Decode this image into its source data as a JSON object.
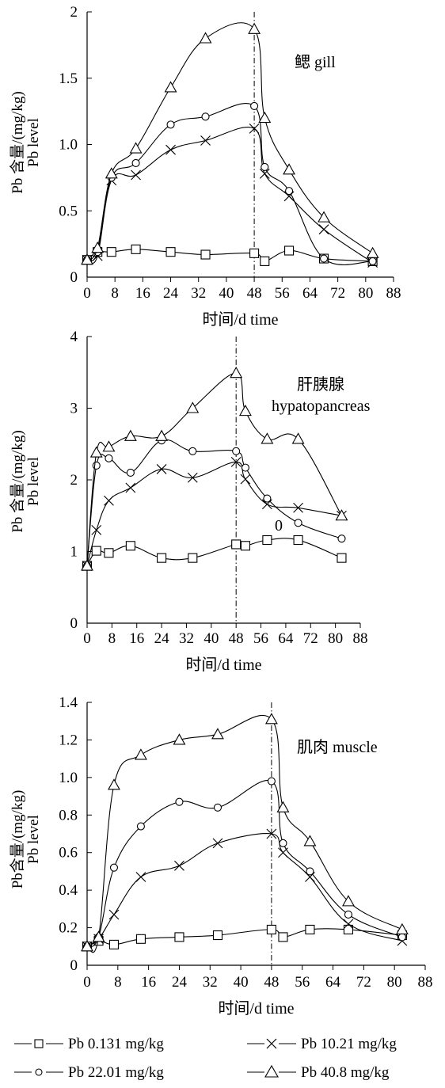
{
  "chart_data": [
    {
      "type": "line",
      "annotation": "鳃 gill",
      "ylabel_1": "Pb 含量/(mg/kg)",
      "ylabel_2": "Pb level",
      "xlabel": "时间/d  time",
      "xlim": [
        0,
        88
      ],
      "ylim": [
        0,
        2
      ],
      "xticks": [
        "0",
        "8",
        "16",
        "24",
        "32",
        "40",
        "48",
        "56",
        "64",
        "72",
        "80",
        "88"
      ],
      "yticks": [
        {
          "v": 0,
          "label": "0"
        },
        {
          "v": 0.5,
          "label": "0.5"
        },
        {
          "v": 1,
          "label": "1.0"
        },
        {
          "v": 1.5,
          "label": "1.5"
        },
        {
          "v": 2,
          "label": "2"
        }
      ],
      "vline_x": 48,
      "series": [
        {
          "name": "Pb 0.131 mg/kg",
          "marker": "square",
          "points": [
            [
              0,
              0.13
            ],
            [
              3,
              0.19
            ],
            [
              7,
              0.19
            ],
            [
              14,
              0.21
            ],
            [
              24,
              0.19
            ],
            [
              34,
              0.17
            ],
            [
              48,
              0.18
            ],
            [
              51,
              0.12
            ],
            [
              58,
              0.2
            ],
            [
              68,
              0.14
            ],
            [
              82,
              0.12
            ]
          ]
        },
        {
          "name": "Pb 10.21 mg/kg",
          "marker": "cross",
          "points": [
            [
              0,
              0.13
            ],
            [
              3,
              0.16
            ],
            [
              7,
              0.73
            ],
            [
              14,
              0.77
            ],
            [
              24,
              0.96
            ],
            [
              34,
              1.03
            ],
            [
              48,
              1.12
            ],
            [
              51,
              0.78
            ],
            [
              58,
              0.61
            ],
            [
              68,
              0.36
            ],
            [
              82,
              0.11
            ]
          ]
        },
        {
          "name": "Pb 22.01 mg/kg",
          "marker": "circle",
          "points": [
            [
              0,
              0.13
            ],
            [
              3,
              0.19
            ],
            [
              7,
              0.75
            ],
            [
              14,
              0.86
            ],
            [
              24,
              1.15
            ],
            [
              34,
              1.21
            ],
            [
              48,
              1.29
            ],
            [
              51,
              0.83
            ],
            [
              58,
              0.65
            ],
            [
              68,
              0.14
            ],
            [
              82,
              0.12
            ]
          ]
        },
        {
          "name": "Pb 40.8 mg/kg",
          "marker": "triangle",
          "points": [
            [
              0,
              0.13
            ],
            [
              3,
              0.22
            ],
            [
              7,
              0.78
            ],
            [
              14,
              0.97
            ],
            [
              24,
              1.43
            ],
            [
              34,
              1.8
            ],
            [
              48,
              1.87
            ],
            [
              51,
              1.2
            ],
            [
              58,
              0.81
            ],
            [
              68,
              0.45
            ],
            [
              82,
              0.18
            ]
          ]
        }
      ]
    },
    {
      "type": "line",
      "annotation": "肝胰腺",
      "annotation_2": "hypatopancreas",
      "ylabel_1": "Pb 含量/(mg/kg)",
      "ylabel_2": "Pb level",
      "xlabel": "时间/d  time",
      "xlim": [
        0,
        88
      ],
      "ylim": [
        0,
        4
      ],
      "xticks": [
        "0",
        "8",
        "16",
        "24",
        "32",
        "40",
        "48",
        "56",
        "64",
        "72",
        "80",
        "88"
      ],
      "yticks": [
        {
          "v": 0,
          "label": "0"
        },
        {
          "v": 1,
          "label": "1"
        },
        {
          "v": 2,
          "label": "2"
        },
        {
          "v": 3,
          "label": "3"
        },
        {
          "v": 4,
          "label": "4"
        }
      ],
      "vline_x": 48,
      "stray_label": "0",
      "series": [
        {
          "name": "Pb 0.131 mg/kg",
          "marker": "square",
          "points": [
            [
              0,
              0.8
            ],
            [
              3,
              1.01
            ],
            [
              7,
              0.98
            ],
            [
              14,
              1.08
            ],
            [
              24,
              0.91
            ],
            [
              34,
              0.91
            ],
            [
              48,
              1.1
            ],
            [
              51,
              1.08
            ],
            [
              58,
              1.16
            ],
            [
              68,
              1.16
            ],
            [
              82,
              0.91
            ]
          ]
        },
        {
          "name": "Pb 10.21 mg/kg",
          "marker": "cross",
          "points": [
            [
              0,
              0.8
            ],
            [
              3,
              1.3
            ],
            [
              7,
              1.71
            ],
            [
              14,
              1.89
            ],
            [
              24,
              2.15
            ],
            [
              34,
              2.03
            ],
            [
              48,
              2.25
            ],
            [
              51,
              2.01
            ],
            [
              58,
              1.66
            ],
            [
              68,
              1.61
            ],
            [
              82,
              1.5
            ]
          ]
        },
        {
          "name": "Pb 22.01 mg/kg",
          "marker": "circle",
          "points": [
            [
              0,
              0.8
            ],
            [
              3,
              2.2
            ],
            [
              7,
              2.3
            ],
            [
              14,
              2.1
            ],
            [
              24,
              2.55
            ],
            [
              34,
              2.4
            ],
            [
              48,
              2.4
            ],
            [
              51,
              2.17
            ],
            [
              58,
              1.74
            ],
            [
              68,
              1.4
            ],
            [
              82,
              1.18
            ]
          ]
        },
        {
          "name": "Pb 40.8 mg/kg",
          "marker": "triangle",
          "points": [
            [
              0,
              0.8
            ],
            [
              3,
              2.38
            ],
            [
              7,
              2.46
            ],
            [
              14,
              2.61
            ],
            [
              24,
              2.61
            ],
            [
              34,
              3.0
            ],
            [
              48,
              3.49
            ],
            [
              51,
              2.96
            ],
            [
              58,
              2.57
            ],
            [
              68,
              2.57
            ],
            [
              82,
              1.5
            ]
          ]
        }
      ]
    },
    {
      "type": "line",
      "annotation": "肌肉 muscle",
      "ylabel_1": "Pb含量/(mg/kg)",
      "ylabel_2": "Pb level",
      "xlabel": "时间/d  time",
      "xlim": [
        0,
        88
      ],
      "ylim": [
        0,
        1.4
      ],
      "xticks": [
        "0",
        "8",
        "16",
        "24",
        "32",
        "40",
        "48",
        "56",
        "64",
        "72",
        "80",
        "88"
      ],
      "yticks": [
        {
          "v": 0,
          "label": "0"
        },
        {
          "v": 0.2,
          "label": "0.2"
        },
        {
          "v": 0.4,
          "label": "0.4"
        },
        {
          "v": 0.6,
          "label": "0.6"
        },
        {
          "v": 0.8,
          "label": "0.8"
        },
        {
          "v": 1.0,
          "label": "1.0"
        },
        {
          "v": 1.2,
          "label": "1.2"
        },
        {
          "v": 1.4,
          "label": "1.4"
        }
      ],
      "vline_x": 48,
      "series": [
        {
          "name": "Pb 0.131 mg/kg",
          "marker": "square",
          "points": [
            [
              0,
              0.1
            ],
            [
              3,
              0.13
            ],
            [
              7,
              0.11
            ],
            [
              14,
              0.14
            ],
            [
              24,
              0.15
            ],
            [
              34,
              0.16
            ],
            [
              48,
              0.19
            ],
            [
              51,
              0.15
            ],
            [
              58,
              0.19
            ],
            [
              68,
              0.19
            ],
            [
              82,
              0.16
            ]
          ]
        },
        {
          "name": "Pb 10.21 mg/kg",
          "marker": "cross",
          "points": [
            [
              0,
              0.1
            ],
            [
              3,
              0.14
            ],
            [
              7,
              0.27
            ],
            [
              14,
              0.47
            ],
            [
              24,
              0.53
            ],
            [
              34,
              0.65
            ],
            [
              48,
              0.7
            ],
            [
              51,
              0.6
            ],
            [
              58,
              0.47
            ],
            [
              68,
              0.22
            ],
            [
              82,
              0.13
            ]
          ]
        },
        {
          "name": "Pb 22.01 mg/kg",
          "marker": "circle",
          "points": [
            [
              0,
              0.1
            ],
            [
              3,
              0.15
            ],
            [
              7,
              0.52
            ],
            [
              14,
              0.74
            ],
            [
              24,
              0.87
            ],
            [
              34,
              0.84
            ],
            [
              48,
              0.98
            ],
            [
              51,
              0.65
            ],
            [
              58,
              0.5
            ],
            [
              68,
              0.27
            ],
            [
              82,
              0.15
            ]
          ]
        },
        {
          "name": "Pb 40.8 mg/kg",
          "marker": "triangle",
          "points": [
            [
              0,
              0.1
            ],
            [
              3,
              0.15
            ],
            [
              7,
              0.96
            ],
            [
              14,
              1.12
            ],
            [
              24,
              1.2
            ],
            [
              34,
              1.23
            ],
            [
              48,
              1.31
            ],
            [
              51,
              0.84
            ],
            [
              58,
              0.66
            ],
            [
              68,
              0.34
            ],
            [
              82,
              0.19
            ]
          ]
        }
      ]
    }
  ],
  "legend": [
    {
      "label": "Pb 0.131 mg/kg",
      "marker": "square"
    },
    {
      "label": "Pb 10.21 mg/kg",
      "marker": "cross"
    },
    {
      "label": "Pb 22.01 mg/kg",
      "marker": "circle"
    },
    {
      "label": "Pb 40.8 mg/kg",
      "marker": "triangle"
    }
  ]
}
